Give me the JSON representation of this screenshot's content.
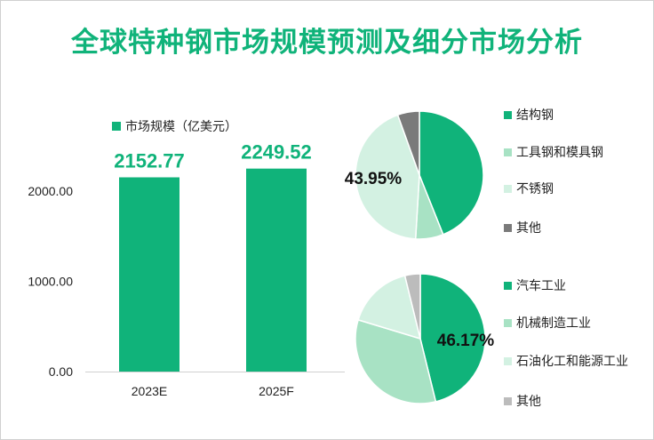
{
  "title": "全球特种钢市场规模预测及细分市场分析",
  "colors": {
    "accent": "#10b37a",
    "light_green": "#a8e2c4",
    "pale_green": "#d3f1e2",
    "dark_gray": "#7a7a7a",
    "light_gray": "#bcbcbc"
  },
  "chart_data": [
    {
      "type": "bar",
      "legend": "市场规模（亿美元）",
      "categories": [
        "2023E",
        "2025F"
      ],
      "values": [
        2152.77,
        2249.52
      ],
      "value_labels": [
        "2152.77",
        "2249.52"
      ],
      "y_ticks": [
        "0.00",
        "1000.00",
        "2000.00"
      ],
      "ylim": [
        0,
        2500
      ],
      "legend_position": "top-left",
      "grid": false
    },
    {
      "type": "pie",
      "labels": [
        "结构钢",
        "工具钢和模具钢",
        "不锈钢",
        "其他"
      ],
      "values": [
        43.95,
        7.0,
        43.55,
        5.5
      ],
      "colors": [
        "#10b37a",
        "#a8e2c4",
        "#d3f1e2",
        "#7a7a7a"
      ],
      "shown_label": "43.95%",
      "legend_position": "right"
    },
    {
      "type": "pie",
      "labels": [
        "汽车工业",
        "机械制造工业",
        "石油化工和能源工业",
        "其他"
      ],
      "values": [
        46.17,
        33.5,
        16.5,
        3.83
      ],
      "colors": [
        "#10b37a",
        "#a8e2c4",
        "#d3f1e2",
        "#bcbcbc"
      ],
      "shown_label": "46.17%",
      "legend_position": "right"
    }
  ]
}
